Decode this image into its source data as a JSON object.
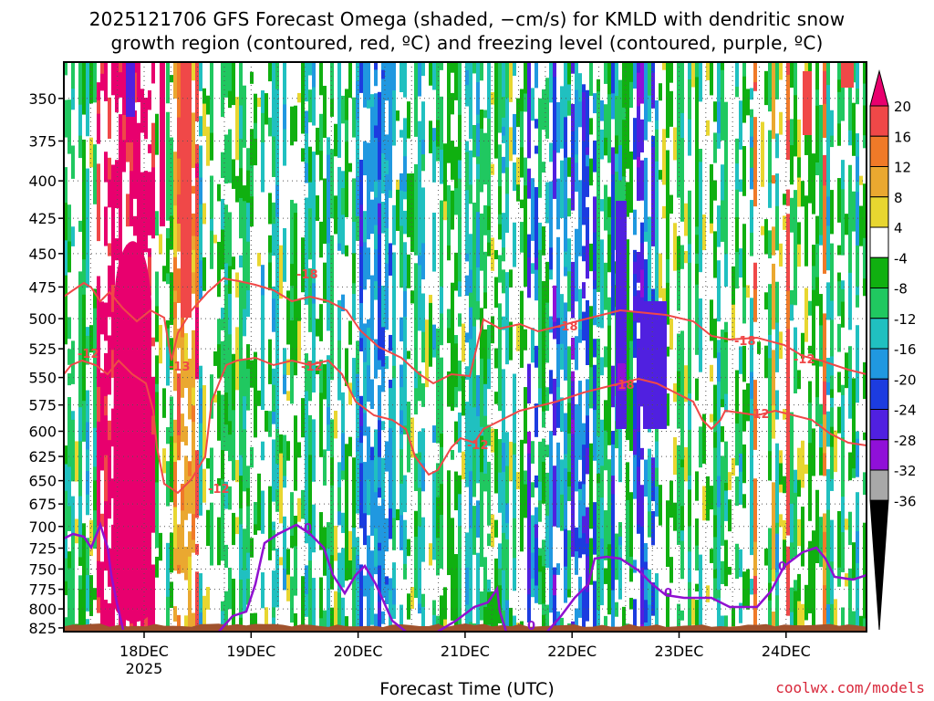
{
  "title": {
    "line1": "2025121706 GFS Forecast Omega (shaded, −cm/s) for KMLD with dendritic snow",
    "line2": "growth region (contoured, red, ºC) and freezing level (contoured, purple, ºC)"
  },
  "credit": "coolwx.com/models",
  "chart_data": {
    "type": "heatmap",
    "title": "2025121706 GFS Forecast Omega (shaded, −cm/s) for KMLD with dendritic snow growth region (contoured, red, ºC) and freezing level (contoured, purple, ºC)",
    "xlabel": "Forecast Time (UTC)",
    "ylabel": "",
    "x_ticks": [
      "18DEC",
      "19DEC",
      "20DEC",
      "21DEC",
      "22DEC",
      "23DEC",
      "24DEC"
    ],
    "x_tick_sub": [
      "2025",
      "",
      "",
      "",
      "",
      "",
      ""
    ],
    "y_ticks": [
      "350",
      "375",
      "400",
      "425",
      "450",
      "475",
      "500",
      "525",
      "550",
      "575",
      "600",
      "625",
      "650",
      "675",
      "700",
      "725",
      "750",
      "775",
      "800",
      "825"
    ],
    "ylim": [
      830,
      330
    ],
    "y_scale": "log-pressure",
    "grid": true,
    "colorbar": {
      "labels": [
        "20",
        "16",
        "12",
        "8",
        "4",
        "-4",
        "-8",
        "-12",
        "-16",
        "-20",
        "-24",
        "-28",
        "-32",
        "-36"
      ],
      "colors": [
        "#e8006e",
        "#f04848",
        "#f07a28",
        "#eaa830",
        "#e8d630",
        "#ffffff",
        "#10b010",
        "#20c860",
        "#20c0c0",
        "#2098e0",
        "#1c3ce0",
        "#5020e0",
        "#9010d8",
        "#a8a8a8",
        "#000000"
      ]
    },
    "contour_labels": {
      "dendritic": [
        "-12",
        "-18",
        "-13",
        "-12",
        "-18",
        "-12",
        "-12",
        "-18",
        "-12",
        "-18",
        "-12"
      ],
      "freezing": [
        "0",
        "0",
        "0",
        "0"
      ]
    },
    "colors": {
      "dgz_contour": "#f04848",
      "freezing_contour": "#9010d0",
      "terrain": "#a0522d"
    }
  }
}
